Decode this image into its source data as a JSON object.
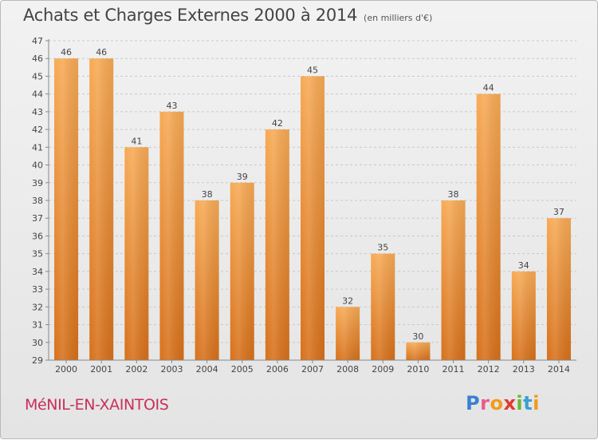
{
  "header": {
    "title": "Achats et Charges Externes 2000 à 2014",
    "subtitle": "(en milliers d'€)"
  },
  "footer": {
    "commune": "MéNIL-EN-XAINTOIS",
    "logo_text": "Proxiti"
  },
  "colors": {
    "bar_light": "#f6a550",
    "bar_dark": "#d9741c",
    "commune": "#c8305a"
  },
  "chart_data": {
    "type": "bar",
    "title": "Achats et Charges Externes 2000 à 2014",
    "subtitle": "(en milliers d'€)",
    "xlabel": "",
    "ylabel": "",
    "categories": [
      "2000",
      "2001",
      "2002",
      "2003",
      "2004",
      "2005",
      "2006",
      "2007",
      "2008",
      "2009",
      "2010",
      "2011",
      "2012",
      "2013",
      "2014"
    ],
    "values": [
      46,
      46,
      41,
      43,
      38,
      39,
      42,
      45,
      32,
      35,
      30,
      38,
      44,
      34,
      37
    ],
    "ylim": [
      29,
      47
    ],
    "yticks": [
      29,
      30,
      31,
      32,
      33,
      34,
      35,
      36,
      37,
      38,
      39,
      40,
      41,
      42,
      43,
      44,
      45,
      46,
      47
    ],
    "grid": true,
    "legend": "none"
  }
}
